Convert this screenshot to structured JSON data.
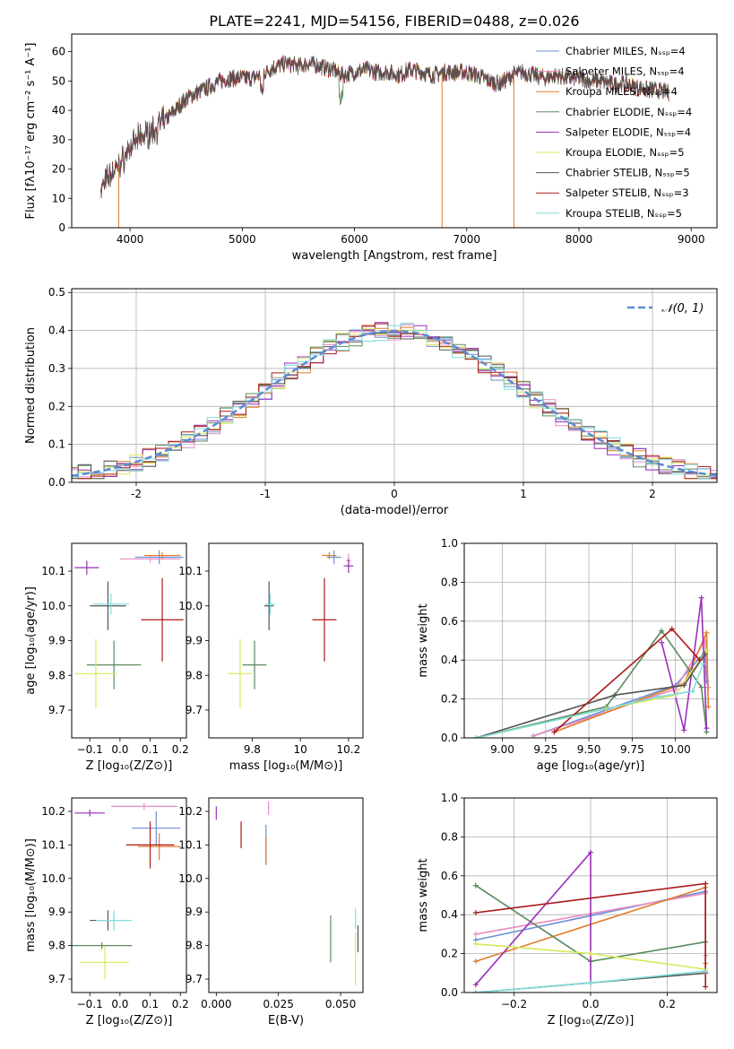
{
  "figure": {
    "title": "PLATE=2241, MJD=54156, FIBERID=0488, z=0.026"
  },
  "colors": {
    "chabrier_miles": "#6b8fd6",
    "salpeter_miles": "#e88bc4",
    "kroupa_miles": "#e07b2a",
    "chabrier_elodie": "#5a8a5e",
    "salpeter_elodie": "#9a2fb8",
    "kroupa_elodie": "#d8e85a",
    "chabrier_stelib": "#555555",
    "salpeter_stelib": "#aa1a1a",
    "kroupa_stelib": "#7fdcdc"
  },
  "chart_data": [
    {
      "id": "spectrum",
      "type": "line",
      "xlabel": "wavelength [Angstrom, rest frame]",
      "ylabel": "Flux [fλ10⁻¹⁷ erg cm⁻² s⁻¹ A⁻¹]",
      "xlim": [
        3480,
        9230
      ],
      "ylim": [
        0,
        66
      ],
      "xticks": [
        4000,
        5000,
        6000,
        7000,
        8000,
        9000
      ],
      "yticks": [
        0,
        10,
        20,
        30,
        40,
        50,
        60
      ],
      "legend": [
        {
          "label": "Chabrier MILES, N_SSP=4",
          "color": "#6b8fd6"
        },
        {
          "label": "Salpeter MILES, N_SSP=4",
          "color": "#e88bc4"
        },
        {
          "label": "Kroupa MILES, N_SSP=4",
          "color": "#e07b2a"
        },
        {
          "label": "Chabrier ELODIE, N_SSP=4",
          "color": "#5a8a5e"
        },
        {
          "label": "Salpeter ELODIE, N_SSP=4",
          "color": "#9a2fb8"
        },
        {
          "label": "Kroupa ELODIE, N_SSP=5",
          "color": "#d8e85a"
        },
        {
          "label": "Chabrier STELIB, N_SSP=5",
          "color": "#555555"
        },
        {
          "label": "Salpeter STELIB, N_SSP=3",
          "color": "#aa1a1a"
        },
        {
          "label": "Kroupa STELIB, N_SSP=5",
          "color": "#7fdcdc"
        }
      ],
      "legend_placement": "upper right",
      "continuum": {
        "x": [
          3740,
          3800,
          3900,
          4000,
          4100,
          4200,
          4300,
          4400,
          4500,
          4600,
          4700,
          4800,
          4900,
          5000,
          5100,
          5200,
          5300,
          5400,
          5500,
          5600,
          5700,
          5800,
          5900,
          6000,
          6100,
          6200,
          6300,
          6400,
          6500,
          6600,
          6700,
          6800,
          6900,
          7000,
          7100,
          7200,
          7300,
          7400,
          7500,
          7600,
          7700,
          7800,
          7900,
          8000,
          8100,
          8200,
          8300,
          8400,
          8500,
          8600,
          8700,
          8800
        ],
        "y": [
          13,
          17,
          21,
          27,
          31,
          33,
          36,
          40,
          44,
          46,
          48,
          50,
          51,
          51,
          51,
          53,
          55,
          56,
          55,
          56,
          55,
          54,
          52,
          53,
          54,
          53,
          53,
          52,
          54,
          53,
          52,
          53,
          53,
          53,
          52,
          50,
          49,
          52,
          53,
          52,
          51,
          52,
          51,
          51,
          50,
          50,
          49,
          49,
          48,
          47,
          47,
          46
        ]
      },
      "spikes": [
        {
          "wavelength": 3900,
          "flux": 0,
          "color": "#e07b2a"
        },
        {
          "wavelength": 6780,
          "flux": 0,
          "color": "#e07b2a"
        },
        {
          "wavelength": 7420,
          "flux": 0,
          "color": "#e07b2a"
        }
      ]
    },
    {
      "id": "residuals",
      "type": "line",
      "xlabel": "(data-model)/error",
      "ylabel": "Normed distribution",
      "xlim": [
        -2.5,
        2.5
      ],
      "ylim": [
        0,
        0.51
      ],
      "xticks": [
        -2,
        -1,
        0,
        1,
        2
      ],
      "yticks": [
        0.0,
        0.1,
        0.2,
        0.3,
        0.4,
        0.5
      ],
      "grid": true,
      "legend": [
        {
          "label": "𝒩(0, 1)",
          "color": "#5b8bd6",
          "style": "dashed"
        }
      ],
      "legend_placement": "upper right",
      "bin_width": 0.1
    },
    {
      "id": "age_vs_z",
      "type": "scatter",
      "xlabel": "Z [log₁₀(Z/Z⊙)]",
      "ylabel": "age  [log₁₀(age/yr)]",
      "xlim": [
        -0.16,
        0.22
      ],
      "ylim": [
        9.62,
        10.18
      ],
      "xticks": [
        -0.1,
        0.0,
        0.1,
        0.2
      ],
      "xtick_labels": [
        "−0.1",
        "0.0",
        "0.1",
        "0.2"
      ],
      "yticks": [
        9.7,
        9.8,
        9.9,
        10.0,
        10.1
      ],
      "points": [
        {
          "x": 0.13,
          "xerr": 0.08,
          "y": 10.14,
          "yerr": 0.02,
          "color": "#6b8fd6"
        },
        {
          "x": 0.1,
          "xerr": 0.1,
          "y": 10.135,
          "yerr": 0.01,
          "color": "#e88bc4"
        },
        {
          "x": 0.14,
          "xerr": 0.06,
          "y": 10.145,
          "yerr": 0.01,
          "color": "#e07b2a"
        },
        {
          "x": -0.02,
          "xerr": 0.09,
          "y": 9.83,
          "yerr": 0.07,
          "color": "#5a8a5e"
        },
        {
          "x": -0.11,
          "xerr": 0.04,
          "y": 10.11,
          "yerr": 0.02,
          "color": "#9a2fb8"
        },
        {
          "x": -0.08,
          "xerr": 0.07,
          "y": 9.805,
          "yerr": 0.1,
          "color": "#d8e85a"
        },
        {
          "x": -0.04,
          "xerr": 0.06,
          "y": 10.0,
          "yerr": 0.07,
          "color": "#555555"
        },
        {
          "x": 0.14,
          "xerr": 0.07,
          "y": 9.96,
          "yerr": 0.12,
          "color": "#aa1a1a"
        },
        {
          "x": -0.03,
          "xerr": 0.06,
          "y": 10.005,
          "yerr": 0.03,
          "color": "#7fdcdc"
        }
      ]
    },
    {
      "id": "age_vs_mass",
      "type": "scatter",
      "xlabel": "mass [log₁₀(M/M⊙)]",
      "ylabel": "",
      "xlim": [
        9.62,
        10.26
      ],
      "ylim": [
        9.62,
        10.18
      ],
      "xticks": [
        9.8,
        10.0,
        10.2
      ],
      "yticks": [
        9.7,
        9.8,
        9.9,
        10.0,
        10.1
      ],
      "points": [
        {
          "x": 10.14,
          "xerr": 0.03,
          "y": 10.14,
          "yerr": 0.02,
          "color": "#6b8fd6"
        },
        {
          "x": 10.2,
          "xerr": 0.01,
          "y": 10.13,
          "yerr": 0.02,
          "color": "#e88bc4"
        },
        {
          "x": 10.12,
          "xerr": 0.03,
          "y": 10.145,
          "yerr": 0.01,
          "color": "#e07b2a"
        },
        {
          "x": 9.81,
          "xerr": 0.05,
          "y": 9.83,
          "yerr": 0.07,
          "color": "#5a8a5e"
        },
        {
          "x": 10.2,
          "xerr": 0.02,
          "y": 10.115,
          "yerr": 0.02,
          "color": "#9a2fb8"
        },
        {
          "x": 9.75,
          "xerr": 0.05,
          "y": 9.805,
          "yerr": 0.1,
          "color": "#d8e85a"
        },
        {
          "x": 9.87,
          "xerr": 0.02,
          "y": 10.0,
          "yerr": 0.07,
          "color": "#555555"
        },
        {
          "x": 10.1,
          "xerr": 0.05,
          "y": 9.96,
          "yerr": 0.12,
          "color": "#aa1a1a"
        },
        {
          "x": 9.875,
          "xerr": 0.02,
          "y": 10.005,
          "yerr": 0.03,
          "color": "#7fdcdc"
        }
      ]
    },
    {
      "id": "weight_vs_age",
      "type": "line",
      "xlabel": "age  [log₁₀(age/yr)]",
      "ylabel": "mass weight",
      "xlim": [
        8.78,
        10.24
      ],
      "ylim": [
        0,
        1
      ],
      "xticks": [
        9.0,
        9.25,
        9.5,
        9.75,
        10.0
      ],
      "xtick_labels": [
        "9.00",
        "9.25",
        "9.50",
        "9.75",
        "10.00"
      ],
      "yticks": [
        0.0,
        0.2,
        0.4,
        0.6,
        0.8,
        1.0
      ],
      "grid": true,
      "series": [
        {
          "color": "#6b8fd6",
          "x": [
            9.18,
            10.0,
            10.17,
            10.18
          ],
          "y": [
            0.01,
            0.27,
            0.44,
            0.29
          ]
        },
        {
          "color": "#e88bc4",
          "x": [
            9.18,
            10.0,
            10.17,
            10.19
          ],
          "y": [
            0.01,
            0.25,
            0.5,
            0.26
          ]
        },
        {
          "color": "#e07b2a",
          "x": [
            9.3,
            10.05,
            10.18,
            10.19
          ],
          "y": [
            0.03,
            0.28,
            0.54,
            0.16
          ]
        },
        {
          "color": "#5a8a5e",
          "x": [
            8.85,
            9.6,
            9.92,
            10.15,
            10.18
          ],
          "y": [
            0.0,
            0.16,
            0.55,
            0.26,
            0.03
          ]
        },
        {
          "color": "#9a2fb8",
          "x": [
            9.92,
            10.05,
            10.15,
            10.18
          ],
          "y": [
            0.49,
            0.04,
            0.72,
            0.05
          ]
        },
        {
          "color": "#d8e85a",
          "x": [
            8.85,
            9.6,
            10.0,
            10.18
          ],
          "y": [
            0.0,
            0.15,
            0.22,
            0.45
          ]
        },
        {
          "color": "#555555",
          "x": [
            8.85,
            9.65,
            10.05,
            10.17
          ],
          "y": [
            0.0,
            0.22,
            0.27,
            0.43
          ]
        },
        {
          "color": "#aa1a1a",
          "x": [
            9.3,
            9.98,
            10.14
          ],
          "y": [
            0.03,
            0.56,
            0.4
          ]
        },
        {
          "color": "#7fdcdc",
          "x": [
            8.85,
            9.9,
            10.1,
            10.16
          ],
          "y": [
            0.0,
            0.21,
            0.24,
            0.38
          ]
        }
      ]
    },
    {
      "id": "mass_vs_z",
      "type": "scatter",
      "xlabel": "Z [log₁₀(Z/Z⊙)]",
      "ylabel": "mass [log₁₀(M/M⊙)]",
      "xlim": [
        -0.16,
        0.22
      ],
      "ylim": [
        9.66,
        10.24
      ],
      "xticks": [
        -0.1,
        0.0,
        0.1,
        0.2
      ],
      "xtick_labels": [
        "−0.1",
        "0.0",
        "0.1",
        "0.2"
      ],
      "yticks": [
        9.7,
        9.8,
        9.9,
        10.0,
        10.1,
        10.2
      ],
      "points": [
        {
          "x": 0.12,
          "xerr": 0.08,
          "y": 10.15,
          "yerr": 0.05,
          "color": "#6b8fd6"
        },
        {
          "x": 0.08,
          "xerr": 0.11,
          "y": 10.215,
          "yerr": 0.01,
          "color": "#e88bc4"
        },
        {
          "x": 0.13,
          "xerr": 0.07,
          "y": 10.095,
          "yerr": 0.04,
          "color": "#e07b2a"
        },
        {
          "x": -0.06,
          "xerr": 0.1,
          "y": 9.8,
          "yerr": 0.01,
          "color": "#5a8a5e"
        },
        {
          "x": -0.1,
          "xerr": 0.05,
          "y": 10.195,
          "yerr": 0.01,
          "color": "#9a2fb8"
        },
        {
          "x": -0.05,
          "xerr": 0.08,
          "y": 9.75,
          "yerr": 0.05,
          "color": "#d8e85a"
        },
        {
          "x": -0.04,
          "xerr": 0.06,
          "y": 9.875,
          "yerr": 0.03,
          "color": "#555555"
        },
        {
          "x": 0.1,
          "xerr": 0.08,
          "y": 10.1,
          "yerr": 0.07,
          "color": "#aa1a1a"
        },
        {
          "x": -0.02,
          "xerr": 0.06,
          "y": 9.875,
          "yerr": 0.03,
          "color": "#7fdcdc"
        }
      ]
    },
    {
      "id": "mass_vs_ebv",
      "type": "scatter",
      "xlabel": "E(B-V)",
      "ylabel": "",
      "xlim": [
        -0.003,
        0.059
      ],
      "ylim": [
        9.66,
        10.24
      ],
      "xticks": [
        0.0,
        0.025,
        0.05
      ],
      "xtick_labels": [
        "0.000",
        "0.025",
        "0.050"
      ],
      "yticks": [
        9.7,
        9.8,
        9.9,
        10.0,
        10.1,
        10.2
      ],
      "points": [
        {
          "x": 0.02,
          "xerr": 0.0,
          "y": 10.1,
          "yerr": 0.06,
          "color": "#6b8fd6"
        },
        {
          "x": 0.021,
          "xerr": 0.0,
          "y": 10.21,
          "yerr": 0.02,
          "color": "#e88bc4"
        },
        {
          "x": 0.02,
          "xerr": 0.0,
          "y": 10.085,
          "yerr": 0.04,
          "color": "#e07b2a"
        },
        {
          "x": 0.046,
          "xerr": 0.0,
          "y": 9.82,
          "yerr": 0.07,
          "color": "#5a8a5e"
        },
        {
          "x": 0.0,
          "xerr": 0.0,
          "y": 10.195,
          "yerr": 0.02,
          "color": "#9a2fb8"
        },
        {
          "x": 0.056,
          "xerr": 0.0,
          "y": 9.76,
          "yerr": 0.08,
          "color": "#d8e85a"
        },
        {
          "x": 0.057,
          "xerr": 0.0,
          "y": 9.82,
          "yerr": 0.04,
          "color": "#555555"
        },
        {
          "x": 0.01,
          "xerr": 0.0,
          "y": 10.13,
          "yerr": 0.04,
          "color": "#aa1a1a"
        },
        {
          "x": 0.056,
          "xerr": 0.0,
          "y": 9.88,
          "yerr": 0.03,
          "color": "#7fdcdc"
        }
      ]
    },
    {
      "id": "weight_vs_z",
      "type": "line",
      "xlabel": "Z [log₁₀(Z/Z⊙)]",
      "ylabel": "mass weight",
      "xlim": [
        -0.33,
        0.33
      ],
      "ylim": [
        0,
        1
      ],
      "xticks": [
        -0.2,
        0.0,
        0.2
      ],
      "xtick_labels": [
        "−0.2",
        "0.0",
        "0.2"
      ],
      "yticks": [
        0.0,
        0.2,
        0.4,
        0.6,
        0.8,
        1.0
      ],
      "grid": true,
      "series": [
        {
          "color": "#6b8fd6",
          "x": [
            -0.3,
            0.3,
            0.3
          ],
          "y": [
            0.27,
            0.52,
            0.1
          ]
        },
        {
          "color": "#e88bc4",
          "x": [
            -0.3,
            0.3,
            0.3
          ],
          "y": [
            0.3,
            0.51,
            0.19
          ]
        },
        {
          "color": "#e07b2a",
          "x": [
            -0.3,
            0.3,
            0.3
          ],
          "y": [
            0.16,
            0.54,
            0.15
          ]
        },
        {
          "color": "#5a8a5e",
          "x": [
            -0.3,
            0.0,
            0.3
          ],
          "y": [
            0.55,
            0.16,
            0.26
          ]
        },
        {
          "color": "#9a2fb8",
          "x": [
            -0.3,
            0.0,
            0.0
          ],
          "y": [
            0.04,
            0.72,
            0.05
          ]
        },
        {
          "color": "#d8e85a",
          "x": [
            -0.3,
            0.0,
            0.3
          ],
          "y": [
            0.25,
            0.2,
            0.12
          ]
        },
        {
          "color": "#555555",
          "x": [
            -0.3,
            0.0,
            0.3
          ],
          "y": [
            0.0,
            0.05,
            0.1
          ]
        },
        {
          "color": "#aa1a1a",
          "x": [
            -0.3,
            0.3,
            0.3
          ],
          "y": [
            0.41,
            0.56,
            0.03
          ]
        },
        {
          "color": "#7fdcdc",
          "x": [
            -0.3,
            0.0,
            0.3
          ],
          "y": [
            0.0,
            0.05,
            0.11
          ]
        }
      ]
    }
  ]
}
